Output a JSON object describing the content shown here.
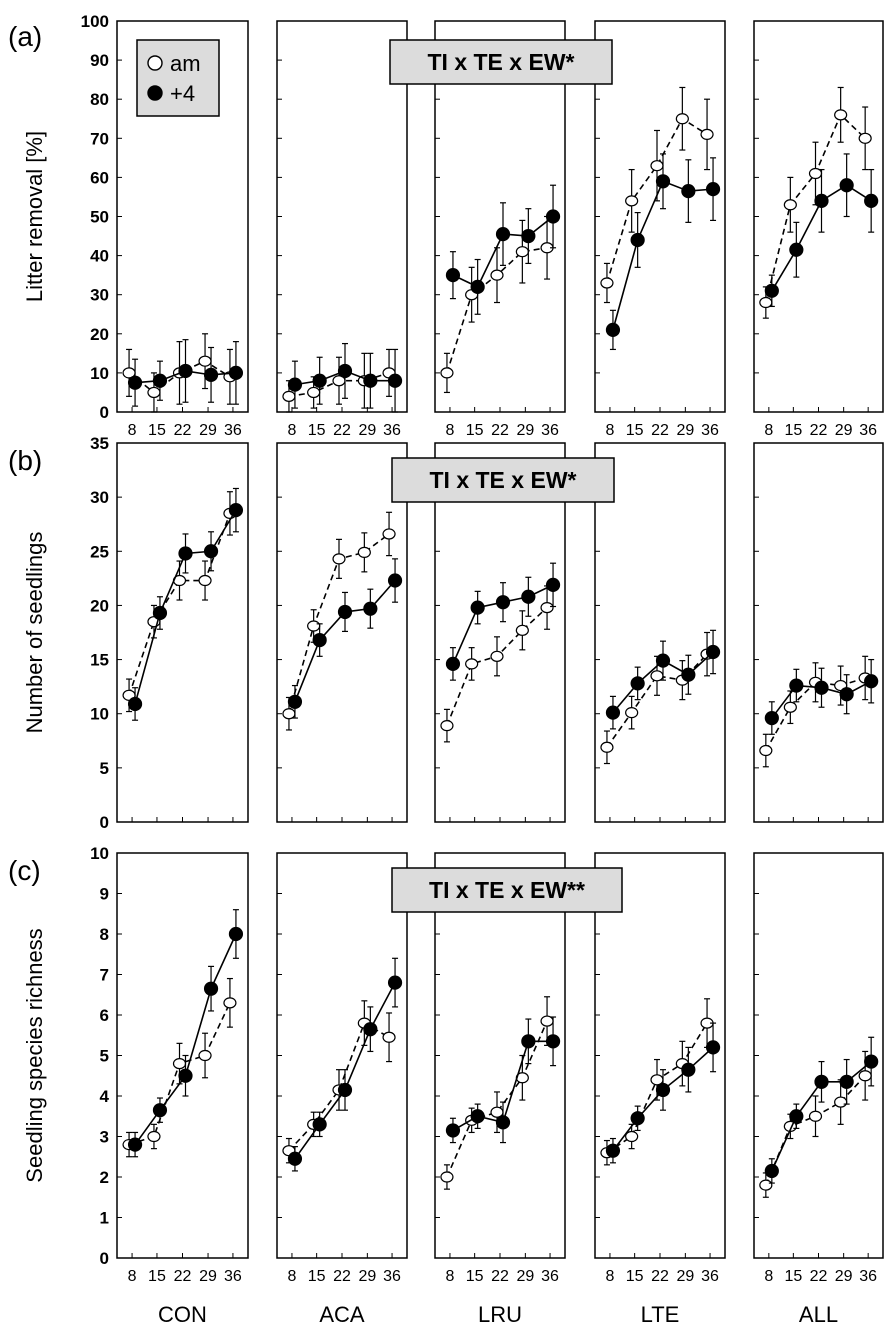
{
  "colors": {
    "open_marker": "#ffffff",
    "filled_marker": "#000000",
    "annotation_box": "#dcdcdc",
    "line": "#000000"
  },
  "legend": {
    "entries": [
      {
        "marker": "open",
        "label": "am"
      },
      {
        "marker": "filled",
        "label": "+4"
      }
    ]
  },
  "groups": [
    "CON",
    "ACA",
    "LRU",
    "LTE",
    "ALL"
  ],
  "chart_data": [
    {
      "type": "line",
      "panel": "(a)",
      "ylabel": "Litter removal [%]",
      "annotation": "TI x TE x EW*",
      "ylim": [
        0,
        100
      ],
      "yticks": [
        "0",
        "10",
        "20",
        "30",
        "40",
        "50",
        "60",
        "70",
        "80",
        "90",
        "100"
      ],
      "x": [
        8,
        15,
        22,
        29,
        36
      ],
      "xtick_labels": [
        "8",
        "15",
        "22",
        "29",
        "36"
      ],
      "groups": [
        {
          "name": "CON",
          "am": {
            "values": [
              10,
              5,
              10,
              13,
              9
            ],
            "err": [
              6,
              5,
              8,
              7,
              7
            ]
          },
          "p4": {
            "values": [
              7.5,
              8,
              10.5,
              9.5,
              10
            ],
            "err": [
              6,
              5,
              8,
              7,
              8
            ]
          }
        },
        {
          "name": "ACA",
          "am": {
            "values": [
              4,
              5,
              8,
              8,
              10
            ],
            "err": [
              4,
              4,
              6,
              7,
              6
            ]
          },
          "p4": {
            "values": [
              7,
              8,
              10.5,
              8,
              8
            ],
            "err": [
              6,
              6,
              7,
              7,
              8
            ]
          }
        },
        {
          "name": "LRU",
          "am": {
            "values": [
              10,
              30,
              35,
              41,
              42
            ],
            "err": [
              5,
              7,
              7,
              8,
              8
            ]
          },
          "p4": {
            "values": [
              35,
              32,
              45.5,
              45,
              50
            ],
            "err": [
              6,
              7,
              8,
              7,
              8
            ]
          }
        },
        {
          "name": "LTE",
          "am": {
            "values": [
              33,
              54,
              63,
              75,
              71
            ],
            "err": [
              5,
              8,
              9,
              8,
              9
            ]
          },
          "p4": {
            "values": [
              21,
              44,
              59,
              56.5,
              57
            ],
            "err": [
              5,
              7,
              7,
              8,
              8
            ]
          }
        },
        {
          "name": "ALL",
          "am": {
            "values": [
              28,
              53,
              61,
              76,
              70
            ],
            "err": [
              4,
              7,
              8,
              7,
              8
            ]
          },
          "p4": {
            "values": [
              31,
              41.5,
              54,
              58,
              54
            ],
            "err": [
              4,
              7,
              8,
              8,
              8
            ]
          }
        }
      ]
    },
    {
      "type": "line",
      "panel": "(b)",
      "ylabel": "Number of seedlings",
      "annotation": "TI x TE x EW*",
      "ylim": [
        0,
        35
      ],
      "yticks": [
        "0",
        "5",
        "10",
        "15",
        "20",
        "25",
        "30",
        "35"
      ],
      "x": [
        8,
        15,
        22,
        29,
        36
      ],
      "xtick_labels": [],
      "groups": [
        {
          "name": "CON",
          "am": {
            "values": [
              11.7,
              18.5,
              22.3,
              22.3,
              28.5
            ],
            "err": [
              1.5,
              1.5,
              1.8,
              1.8,
              2
            ]
          },
          "p4": {
            "values": [
              10.9,
              19.3,
              24.8,
              25,
              28.8
            ],
            "err": [
              1.5,
              1.5,
              1.8,
              1.8,
              2
            ]
          }
        },
        {
          "name": "ACA",
          "am": {
            "values": [
              10,
              18.1,
              24.3,
              24.9,
              26.6
            ],
            "err": [
              1.5,
              1.5,
              1.8,
              1.8,
              2
            ]
          },
          "p4": {
            "values": [
              11.1,
              16.8,
              19.4,
              19.7,
              22.3
            ],
            "err": [
              1.5,
              1.5,
              1.8,
              1.8,
              2
            ]
          }
        },
        {
          "name": "LRU",
          "am": {
            "values": [
              8.9,
              14.6,
              15.3,
              17.7,
              19.8
            ],
            "err": [
              1.5,
              1.5,
              1.8,
              1.8,
              2
            ]
          },
          "p4": {
            "values": [
              14.6,
              19.8,
              20.3,
              20.8,
              21.9
            ],
            "err": [
              1.5,
              1.5,
              1.8,
              1.8,
              2
            ]
          }
        },
        {
          "name": "LTE",
          "am": {
            "values": [
              6.9,
              10.1,
              13.5,
              13.1,
              15.5
            ],
            "err": [
              1.5,
              1.5,
              1.8,
              1.8,
              2
            ]
          },
          "p4": {
            "values": [
              10.1,
              12.8,
              14.9,
              13.6,
              15.7
            ],
            "err": [
              1.5,
              1.5,
              1.8,
              1.8,
              2
            ]
          }
        },
        {
          "name": "ALL",
          "am": {
            "values": [
              6.6,
              10.6,
              12.9,
              12.6,
              13.3
            ],
            "err": [
              1.5,
              1.5,
              1.8,
              1.8,
              2
            ]
          },
          "p4": {
            "values": [
              9.6,
              12.6,
              12.4,
              11.8,
              13
            ],
            "err": [
              1.5,
              1.5,
              1.8,
              1.8,
              2
            ]
          }
        }
      ]
    },
    {
      "type": "line",
      "panel": "(c)",
      "ylabel": "Seedling species richness",
      "annotation": "TI x TE x EW**",
      "ylim": [
        0,
        10
      ],
      "yticks": [
        "0",
        "1",
        "2",
        "3",
        "4",
        "5",
        "6",
        "7",
        "8",
        "9",
        "10"
      ],
      "x": [
        8,
        15,
        22,
        29,
        36
      ],
      "xtick_labels": [
        "8",
        "15",
        "22",
        "29",
        "36"
      ],
      "groups": [
        {
          "name": "CON",
          "am": {
            "values": [
              2.8,
              3,
              4.8,
              5,
              6.3
            ],
            "err": [
              0.3,
              0.3,
              0.5,
              0.55,
              0.6
            ]
          },
          "p4": {
            "values": [
              2.8,
              3.65,
              4.5,
              6.65,
              8
            ],
            "err": [
              0.3,
              0.3,
              0.5,
              0.55,
              0.6
            ]
          }
        },
        {
          "name": "ACA",
          "am": {
            "values": [
              2.65,
              3.3,
              4.15,
              5.8,
              5.45
            ],
            "err": [
              0.3,
              0.3,
              0.5,
              0.55,
              0.6
            ]
          },
          "p4": {
            "values": [
              2.45,
              3.3,
              4.15,
              5.65,
              6.8
            ],
            "err": [
              0.3,
              0.3,
              0.5,
              0.55,
              0.6
            ]
          }
        },
        {
          "name": "LRU",
          "am": {
            "values": [
              2,
              3.4,
              3.6,
              4.45,
              5.85
            ],
            "err": [
              0.3,
              0.3,
              0.5,
              0.55,
              0.6
            ]
          },
          "p4": {
            "values": [
              3.15,
              3.5,
              3.35,
              5.35,
              5.35
            ],
            "err": [
              0.3,
              0.3,
              0.5,
              0.55,
              0.6
            ]
          }
        },
        {
          "name": "LTE",
          "am": {
            "values": [
              2.6,
              3,
              4.4,
              4.8,
              5.8
            ],
            "err": [
              0.3,
              0.3,
              0.5,
              0.55,
              0.6
            ]
          },
          "p4": {
            "values": [
              2.65,
              3.45,
              4.15,
              4.65,
              5.2
            ],
            "err": [
              0.3,
              0.3,
              0.5,
              0.55,
              0.6
            ]
          }
        },
        {
          "name": "ALL",
          "am": {
            "values": [
              1.8,
              3.25,
              3.5,
              3.85,
              4.5
            ],
            "err": [
              0.3,
              0.3,
              0.5,
              0.55,
              0.6
            ]
          },
          "p4": {
            "values": [
              2.15,
              3.5,
              4.35,
              4.35,
              4.85
            ],
            "err": [
              0.3,
              0.3,
              0.5,
              0.55,
              0.6
            ]
          }
        }
      ]
    }
  ]
}
